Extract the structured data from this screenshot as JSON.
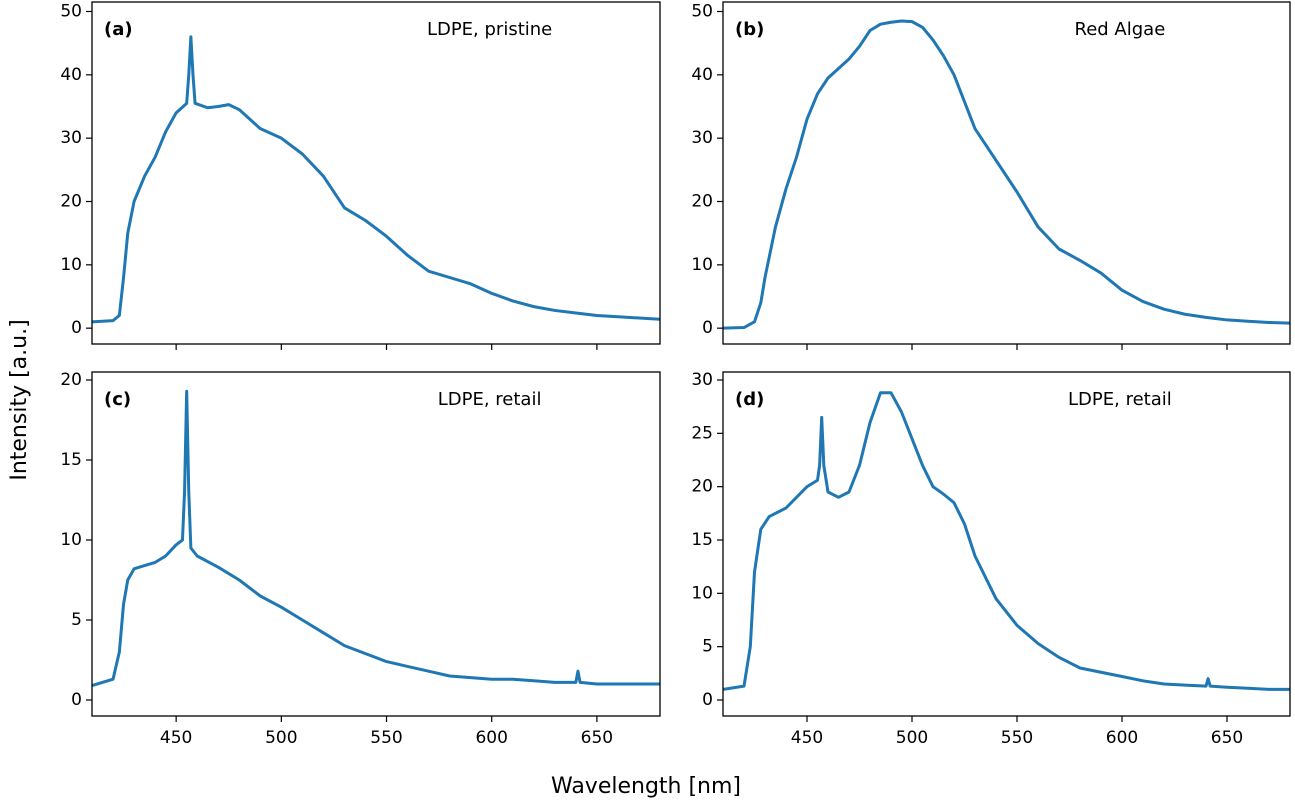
{
  "xlabel": "Wavelength [nm]",
  "ylabel": "Intensity [a.u.]",
  "chart_data": [
    {
      "type": "line",
      "panel_label": "(a)",
      "annotation": "LDPE, pristine",
      "color": "#1f77b4",
      "xlim": [
        410,
        680
      ],
      "ylim": [
        -2.5,
        51.5
      ],
      "xticks": [
        450,
        500,
        550,
        600,
        650
      ],
      "yticks": [
        0,
        10,
        20,
        30,
        40,
        50
      ],
      "show_xtick_labels": false,
      "x": [
        410,
        420,
        423,
        425,
        427,
        430,
        435,
        440,
        445,
        450,
        455,
        456,
        457,
        458,
        459,
        465,
        470,
        475,
        480,
        485,
        490,
        500,
        510,
        520,
        530,
        540,
        550,
        560,
        570,
        580,
        590,
        600,
        610,
        620,
        630,
        640,
        650,
        660,
        670,
        680
      ],
      "values": [
        1,
        1.2,
        2,
        8,
        15,
        20,
        24,
        27,
        31,
        34,
        35.5,
        40,
        46,
        40,
        35.5,
        34.8,
        35,
        35.3,
        34.5,
        33,
        31.5,
        30,
        27.5,
        24,
        19,
        17,
        14.5,
        11.5,
        9,
        8,
        7,
        5.5,
        4.3,
        3.4,
        2.8,
        2.4,
        2,
        1.8,
        1.6,
        1.4
      ]
    },
    {
      "type": "line",
      "panel_label": "(b)",
      "annotation": "Red Algae",
      "color": "#1f77b4",
      "xlim": [
        410,
        680
      ],
      "ylim": [
        -2.5,
        51.5
      ],
      "xticks": [
        450,
        500,
        550,
        600,
        650
      ],
      "yticks": [
        0,
        10,
        20,
        30,
        40,
        50
      ],
      "show_xtick_labels": false,
      "x": [
        410,
        420,
        425,
        428,
        430,
        435,
        440,
        445,
        450,
        455,
        460,
        465,
        470,
        475,
        480,
        485,
        490,
        495,
        500,
        505,
        510,
        515,
        520,
        530,
        540,
        550,
        560,
        570,
        580,
        590,
        600,
        610,
        620,
        630,
        640,
        650,
        660,
        670,
        680
      ],
      "values": [
        0,
        0.1,
        1,
        4,
        8,
        16,
        22,
        27,
        33,
        37,
        39.5,
        41,
        42.5,
        44.5,
        47,
        48,
        48.3,
        48.5,
        48.4,
        47.5,
        45.5,
        43,
        40,
        31.5,
        26.5,
        21.5,
        16,
        12.5,
        10.7,
        8.7,
        6,
        4.2,
        3,
        2.2,
        1.7,
        1.3,
        1.1,
        0.9,
        0.8
      ]
    },
    {
      "type": "line",
      "panel_label": "(c)",
      "annotation": "LDPE, retail",
      "color": "#1f77b4",
      "xlim": [
        410,
        680
      ],
      "ylim": [
        -1,
        20.5
      ],
      "xticks": [
        450,
        500,
        550,
        600,
        650
      ],
      "yticks": [
        0,
        5,
        10,
        15,
        20
      ],
      "show_xtick_labels": true,
      "x": [
        410,
        420,
        423,
        425,
        427,
        430,
        435,
        440,
        445,
        450,
        453,
        454,
        455,
        456,
        457,
        460,
        470,
        480,
        490,
        500,
        510,
        520,
        530,
        540,
        550,
        560,
        570,
        580,
        590,
        600,
        610,
        620,
        630,
        640,
        641,
        642,
        650,
        660,
        670,
        680
      ],
      "values": [
        0.9,
        1.3,
        3,
        6,
        7.5,
        8.2,
        8.4,
        8.6,
        9,
        9.7,
        10,
        13,
        19.3,
        13,
        9.5,
        9,
        8.3,
        7.5,
        6.5,
        5.8,
        5,
        4.2,
        3.4,
        2.9,
        2.4,
        2.1,
        1.8,
        1.5,
        1.4,
        1.3,
        1.3,
        1.2,
        1.1,
        1.1,
        1.8,
        1.1,
        1,
        1,
        1,
        1
      ]
    },
    {
      "type": "line",
      "panel_label": "(d)",
      "annotation": "LDPE, retail",
      "color": "#1f77b4",
      "xlim": [
        410,
        680
      ],
      "ylim": [
        -1.5,
        30.75
      ],
      "xticks": [
        450,
        500,
        550,
        600,
        650
      ],
      "yticks": [
        0,
        5,
        10,
        15,
        20,
        25,
        30
      ],
      "show_xtick_labels": true,
      "x": [
        410,
        420,
        423,
        425,
        428,
        432,
        440,
        445,
        450,
        455,
        456,
        457,
        458,
        460,
        465,
        470,
        475,
        480,
        485,
        490,
        495,
        500,
        505,
        510,
        515,
        520,
        525,
        530,
        540,
        550,
        560,
        570,
        580,
        590,
        600,
        610,
        620,
        630,
        640,
        641,
        642,
        650,
        660,
        670,
        680
      ],
      "values": [
        1,
        1.3,
        5,
        12,
        16,
        17.2,
        18,
        19,
        20,
        20.6,
        22,
        26.5,
        22,
        19.5,
        19,
        19.5,
        22,
        26,
        28.8,
        28.8,
        27,
        24.5,
        22,
        20,
        19.3,
        18.5,
        16.5,
        13.5,
        9.5,
        7,
        5.3,
        4,
        3,
        2.6,
        2.2,
        1.8,
        1.5,
        1.4,
        1.3,
        2,
        1.3,
        1.2,
        1.1,
        1,
        1
      ]
    }
  ]
}
